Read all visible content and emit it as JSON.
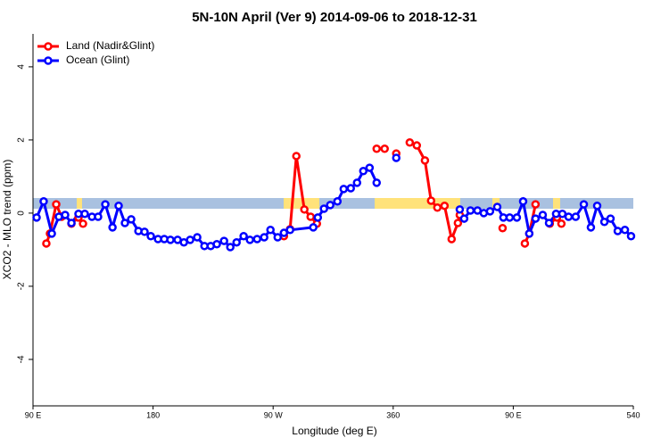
{
  "chart_data": {
    "type": "line",
    "title": "5N-10N April (Ver 9)   2014-09-06 to 2018-12-31",
    "x_label": "Longitude (deg E)",
    "y_label": "XCO2 - MLO trend (ppm)",
    "xlim": [
      90,
      540
    ],
    "ylim": [
      -5.27,
      4.9
    ],
    "xticks": [
      {
        "value": 90,
        "label": "90 E"
      },
      180,
      {
        "value": 270,
        "label": "90 W"
      },
      360,
      {
        "value": 450,
        "label": "90 E"
      },
      540
    ],
    "yticks": [
      -4,
      -2,
      0,
      2,
      4
    ],
    "legend": "top-left",
    "series": [
      {
        "name": "Land (Nadir&Glint)",
        "color": "#ff0000",
        "x": [
          100.0,
          102.7,
          107.4,
          111.4,
          null,
          118.8,
          124.1,
          127.5,
          null,
          278.1,
          282.7,
          287.4,
          293.4,
          298.1,
          302.8,
          null,
          347.6,
          353.6,
          null,
          362.3,
          null,
          372.4,
          377.7,
          383.8,
          388.4,
          393.1,
          398.5,
          403.8,
          408.5,
          409.9,
          null,
          442.0,
          null,
          458.7,
          462.0,
          466.7,
          null,
          477.4,
          482.8,
          486.1
        ],
        "values": [
          -0.83,
          -0.56,
          0.24,
          -0.1,
          null,
          -0.29,
          -0.12,
          -0.29,
          null,
          -0.63,
          -0.44,
          1.56,
          0.1,
          -0.1,
          -0.29,
          null,
          1.76,
          1.76,
          null,
          1.63,
          null,
          1.93,
          1.85,
          1.44,
          0.34,
          0.15,
          0.2,
          -0.71,
          -0.27,
          -0.05,
          null,
          -0.41,
          null,
          -0.83,
          -0.56,
          0.24,
          null,
          -0.29,
          -0.12,
          -0.29
        ]
      },
      {
        "name": "Ocean (Glint)",
        "color": "#0000ff",
        "x": [
          92.7,
          98.0,
          104.1,
          109.4,
          114.1,
          118.8,
          124.1,
          128.8,
          134.2,
          138.8,
          144.2,
          149.6,
          154.2,
          158.9,
          163.6,
          169.0,
          173.6,
          178.3,
          183.7,
          188.4,
          193.0,
          198.4,
          203.1,
          207.8,
          213.1,
          218.5,
          223.2,
          227.8,
          233.2,
          237.9,
          242.6,
          247.9,
          252.6,
          258.0,
          263.3,
          268.0,
          273.4,
          278.1,
          282.7,
          300.1,
          303.5,
          308.1,
          312.8,
          318.2,
          322.9,
          328.2,
          332.9,
          337.6,
          342.3,
          347.6,
          null,
          362.3,
          null,
          409.9,
          413.2,
          417.9,
          423.2,
          427.9,
          432.6,
          438.0,
          442.6,
          447.3,
          452.7,
          457.4,
          462.0,
          466.7,
          472.1,
          476.8,
          482.1,
          486.8,
          491.5,
          496.8,
          502.9,
          508.2,
          512.9,
          518.3,
          522.9,
          528.3,
          533.7,
          538.3
        ],
        "values": [
          -0.12,
          0.32,
          -0.56,
          -0.1,
          -0.05,
          -0.27,
          -0.02,
          -0.02,
          -0.1,
          -0.1,
          0.24,
          -0.39,
          0.2,
          -0.27,
          -0.17,
          -0.49,
          -0.51,
          -0.63,
          -0.71,
          -0.71,
          -0.73,
          -0.73,
          -0.8,
          -0.73,
          -0.66,
          -0.9,
          -0.9,
          -0.85,
          -0.76,
          -0.93,
          -0.8,
          -0.63,
          -0.73,
          -0.71,
          -0.66,
          -0.46,
          -0.66,
          -0.54,
          -0.46,
          -0.39,
          -0.12,
          0.12,
          0.22,
          0.32,
          0.66,
          0.68,
          0.83,
          1.15,
          1.24,
          0.83,
          null,
          1.51,
          null,
          0.1,
          -0.15,
          0.07,
          0.07,
          0.0,
          0.05,
          0.17,
          -0.12,
          -0.12,
          -0.12,
          0.32,
          -0.56,
          -0.15,
          -0.05,
          -0.27,
          -0.02,
          -0.02,
          -0.1,
          -0.1,
          0.24,
          -0.39,
          0.2,
          -0.24,
          -0.15,
          -0.49,
          -0.46,
          -0.63
        ]
      }
    ]
  }
}
